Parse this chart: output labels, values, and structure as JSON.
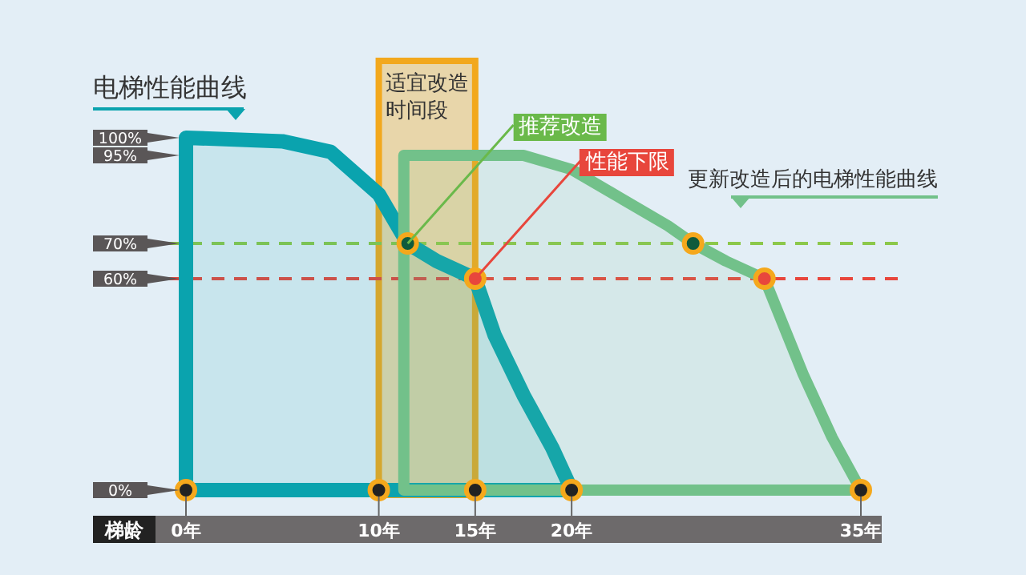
{
  "chart_data": {
    "type": "area",
    "xlabel": "梯龄",
    "xlim": [
      0,
      35
    ],
    "ylim": [
      0,
      100
    ],
    "xticks": [
      {
        "value": 0,
        "label": "0年"
      },
      {
        "value": 10,
        "label": "10年"
      },
      {
        "value": 15,
        "label": "15年"
      },
      {
        "value": 20,
        "label": "20年"
      },
      {
        "value": 35,
        "label": "35年"
      }
    ],
    "yticks": [
      {
        "value": 0,
        "label": "0%"
      },
      {
        "value": 60,
        "label": "60%"
      },
      {
        "value": 70,
        "label": "70%"
      },
      {
        "value": 95,
        "label": "95%"
      },
      {
        "value": 100,
        "label": "100%"
      }
    ],
    "series": [
      {
        "name": "电梯性能曲线",
        "color": "#0aa3ae",
        "x": [
          0,
          0,
          5,
          7.5,
          10,
          11.5,
          13,
          15,
          16,
          17.5,
          19,
          20
        ],
        "values": [
          0,
          100,
          99,
          96,
          84,
          70,
          65,
          60,
          44,
          27,
          12,
          0
        ]
      },
      {
        "name": "更新改造后的电梯性能曲线",
        "color": "#72c18a",
        "x": [
          11.3,
          11.3,
          15,
          17.5,
          20,
          22.5,
          25,
          26.3,
          28,
          30,
          32,
          33.5,
          35
        ],
        "values": [
          0,
          95,
          95,
          95,
          91,
          83,
          75,
          70,
          65,
          60,
          33,
          15,
          0
        ]
      },
      {
        "type": "scatter",
        "marker": "circle",
        "x": [
          11.5,
          15,
          26.3,
          30
        ],
        "values": [
          70,
          60,
          70,
          60
        ],
        "colors": [
          "#0f5a3c",
          "#e8463c",
          "#0f5a3c",
          "#e8463c"
        ]
      },
      {
        "type": "scatter",
        "marker": "circle",
        "x": [
          0,
          10,
          15,
          20,
          35
        ],
        "values": [
          0,
          0,
          0,
          0,
          0
        ],
        "color": "#222222"
      }
    ],
    "ref_lines": [
      {
        "axis": "y",
        "value": 70,
        "color": "#8cc84b",
        "line_style": "dashed"
      },
      {
        "axis": "y",
        "value": 60,
        "color": "#e8463c",
        "line_style": "dashed"
      }
    ],
    "bands": [
      {
        "axis": "x",
        "from": 10,
        "to": 15,
        "label": "适宜改造时间段",
        "color": "#f2a81d"
      }
    ],
    "annotations": [
      {
        "text": "推荐改造",
        "x": 11.5,
        "y": 70
      },
      {
        "text": "性能下限",
        "x": 15,
        "y": 60
      }
    ]
  }
}
